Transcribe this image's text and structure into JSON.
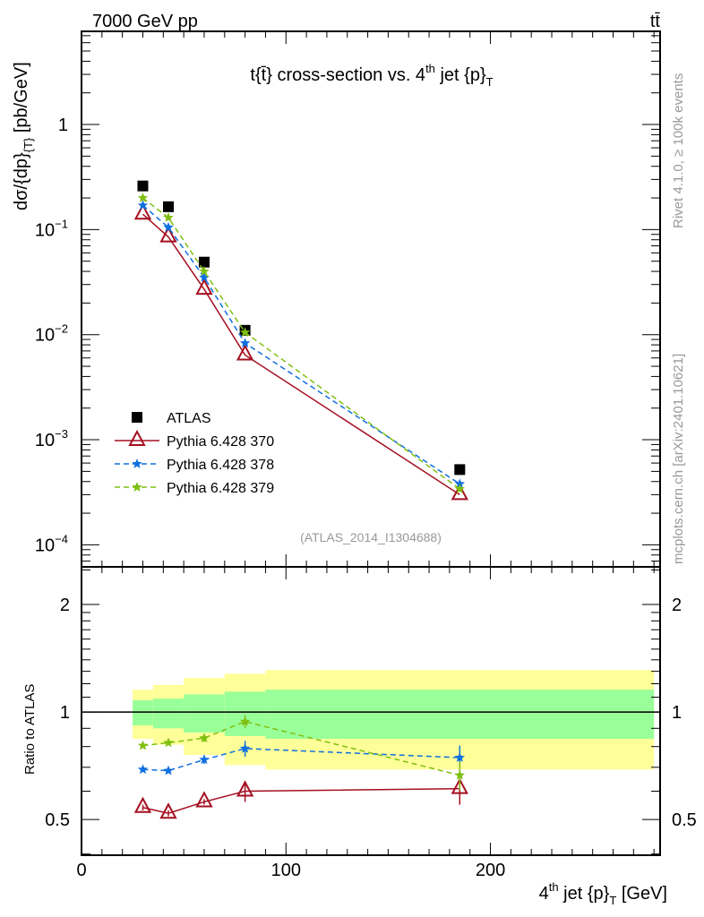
{
  "header": {
    "energy": "7000 GeV pp",
    "process": "tt̄"
  },
  "side": {
    "rivet": "Rivet 4.1.0, ≥ 100k events",
    "mcplots": "mcplots.cern.ch [arXiv:2401.10621]"
  },
  "chart_data": {
    "type": "line",
    "title": "t{t̄} cross-section vs. 4",
    "title_sup": "th",
    "title_end": " jet {p}",
    "title_sub": "T",
    "analysis": "(ATLAS_2014_I1304688)",
    "ylabel": "dσ/{dp}",
    "ylabel_sub": "{T}",
    "ylabel_end": " [pb/GeV]",
    "ratio_ylabel": "Ratio to ATLAS",
    "xlabel_pre": "4",
    "xlabel_sup": "th",
    "xlabel_mid": " jet {p}",
    "xlabel_sub": "T",
    "xlabel_end": " [GeV]",
    "xlim": [
      0,
      283
    ],
    "ylim": [
      6.17e-05,
      7.7
    ],
    "yscale": "log",
    "ratio_ylim": [
      0.397,
      2.55
    ],
    "x_ticks": [
      "0",
      "100",
      "200"
    ],
    "y_ticks": [
      {
        "m": "1",
        "e": ""
      },
      {
        "m": "10",
        "e": "−1"
      },
      {
        "m": "10",
        "e": "−2"
      },
      {
        "m": "10",
        "e": "−3"
      },
      {
        "m": "10",
        "e": "−4"
      }
    ],
    "ratio_ticks": [
      "0.5",
      "1",
      "2"
    ],
    "x": [
      30,
      42.5,
      60,
      80,
      185
    ],
    "series": [
      {
        "name": "ATLAS",
        "color": "#000000",
        "marker": "square",
        "values": [
          0.26,
          0.165,
          0.049,
          0.011,
          0.00052
        ]
      },
      {
        "name": "Pythia 6.428 370",
        "color": "#a50f21",
        "marker": "triangle",
        "dash": "",
        "values": [
          0.14,
          0.085,
          0.027,
          0.0064,
          0.0003
        ],
        "ratio": [
          0.54,
          0.52,
          0.56,
          0.6,
          0.61
        ],
        "ratio_err": [
          0.01,
          0.01,
          0.01,
          0.04,
          0.06
        ]
      },
      {
        "name": "Pythia 6.428 378",
        "color": "#0f6fe0",
        "marker": "star",
        "dash": "6,4",
        "values": [
          0.17,
          0.105,
          0.035,
          0.0083,
          0.00038
        ],
        "ratio": [
          0.69,
          0.685,
          0.735,
          0.79,
          0.745
        ],
        "ratio_err": [
          0.01,
          0.01,
          0.02,
          0.04,
          0.06
        ]
      },
      {
        "name": "Pythia 6.428 379",
        "color": "#7fbf10",
        "marker": "star",
        "dash": "6,4",
        "values": [
          0.2,
          0.13,
          0.04,
          0.0105,
          0.00034
        ],
        "ratio": [
          0.805,
          0.82,
          0.845,
          0.94,
          0.665
        ],
        "ratio_err": [
          0.01,
          0.01,
          0.02,
          0.04,
          0.06
        ]
      }
    ],
    "bands": {
      "edges": [
        25,
        35,
        50,
        70,
        90,
        280
      ],
      "yellow": [
        [
          0.841,
          1.155
        ],
        [
          0.81,
          1.19
        ],
        [
          0.758,
          1.245
        ],
        [
          0.71,
          1.28
        ],
        [
          0.69,
          1.31
        ]
      ],
      "green": [
        [
          0.917,
          1.078
        ],
        [
          0.9,
          1.09
        ],
        [
          0.876,
          1.12
        ],
        [
          0.856,
          1.14
        ],
        [
          0.841,
          1.155
        ]
      ],
      "yellow_color": "#ffff99",
      "green_color": "#99ff99"
    },
    "legend_position": "bottom-left"
  }
}
